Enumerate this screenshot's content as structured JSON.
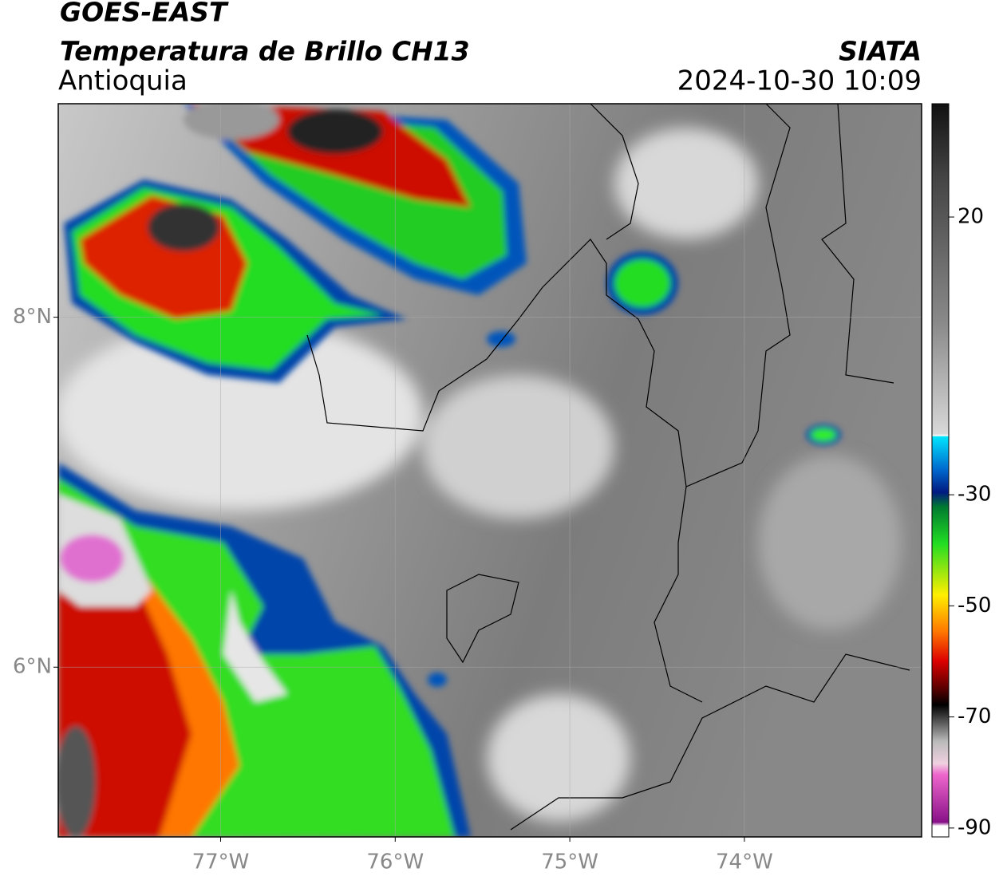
{
  "header": {
    "title": "GOES-EAST",
    "subtitle": "Temperatura de Brillo CH13",
    "region": "Antioquia",
    "agency": "SIATA",
    "datetime": "2024-10-30 10:09"
  },
  "map": {
    "xlim": [
      -77.93,
      -72.985
    ],
    "ylim": [
      5.03,
      9.22
    ],
    "xticks": [
      {
        "value": -77,
        "label": "77°W"
      },
      {
        "value": -76,
        "label": "76°W"
      },
      {
        "value": -75,
        "label": "75°W"
      },
      {
        "value": -74,
        "label": "74°W"
      }
    ],
    "yticks": [
      {
        "value": 8,
        "label": "8°N"
      },
      {
        "value": 6,
        "label": "6°N"
      }
    ]
  },
  "colorbar": {
    "lim": [
      -91.6,
      40.4
    ],
    "ticks": [
      20,
      -30,
      -50,
      -70,
      -90
    ]
  }
}
